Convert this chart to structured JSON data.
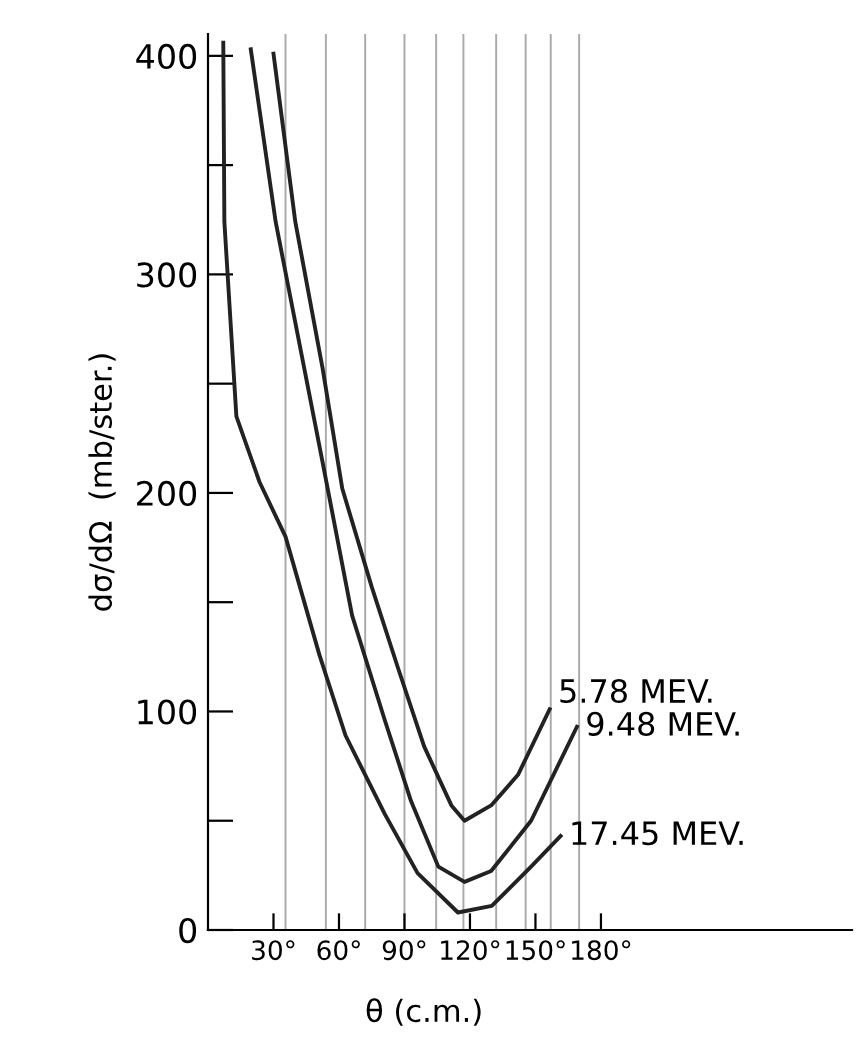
{
  "chart_data": {
    "type": "line",
    "xlabel": "θ (c.m.)",
    "ylabel": "dσ/dΩ  (mb/ster.)",
    "xlim": [
      0,
      295
    ],
    "ylim": [
      0,
      410
    ],
    "xticks": [
      {
        "value": 30,
        "label": "30°"
      },
      {
        "value": 60,
        "label": "60°"
      },
      {
        "value": 90,
        "label": "90°"
      },
      {
        "value": 120,
        "label": "120°"
      },
      {
        "value": 150,
        "label": "150°"
      },
      {
        "value": 180,
        "label": "180°"
      }
    ],
    "yticks": [
      0,
      {
        "value": 50,
        "label": null
      },
      100,
      {
        "value": 150,
        "label": null
      },
      200,
      {
        "value": 250,
        "label": null
      },
      300,
      {
        "value": 350,
        "label": null
      },
      400
    ],
    "grid": false,
    "legend": false,
    "marker": "none",
    "line_style": "solid",
    "series": [
      {
        "name": "5.78 MEV.",
        "color": "#222222",
        "x": [
          30,
          40,
          52.5,
          61.5,
          75,
          87,
          99,
          111.5,
          117.5,
          129.7,
          142,
          156.5
        ],
        "values": [
          401,
          324,
          257,
          202,
          157,
          120,
          84,
          57,
          50,
          57,
          71,
          101
        ]
      },
      {
        "name": "9.48 MEV.",
        "color": "#222222",
        "x": [
          19.6,
          31,
          52.5,
          66,
          81,
          93,
          105.5,
          117.5,
          129.7,
          148,
          169
        ],
        "values": [
          403,
          324,
          214,
          144,
          96,
          59,
          29,
          22,
          27,
          50,
          93
        ]
      },
      {
        "name": "17.45 MEV.",
        "color": "#222222",
        "x": [
          7,
          7.5,
          13,
          23.6,
          35.5,
          51,
          63,
          81,
          96,
          114.5,
          130,
          148,
          161.5
        ],
        "values": [
          406,
          324,
          235,
          205,
          180,
          126,
          89,
          53,
          26,
          8,
          11,
          29,
          43
        ]
      }
    ],
    "ref_lines": [
      {
        "axis": "x",
        "value": 35.5,
        "color": "#aaaaaa"
      },
      {
        "axis": "x",
        "value": 54,
        "color": "#aaaaaa"
      },
      {
        "axis": "x",
        "value": 72,
        "color": "#aaaaaa"
      },
      {
        "axis": "x",
        "value": 90,
        "color": "#aaaaaa"
      },
      {
        "axis": "x",
        "value": 104.5,
        "color": "#aaaaaa"
      },
      {
        "axis": "x",
        "value": 117,
        "color": "#aaaaaa"
      },
      {
        "axis": "x",
        "value": 132,
        "color": "#aaaaaa"
      },
      {
        "axis": "x",
        "value": 145.5,
        "color": "#aaaaaa"
      },
      {
        "axis": "x",
        "value": 157,
        "color": "#aaaaaa"
      },
      {
        "axis": "x",
        "value": 170,
        "color": "#aaaaaa"
      }
    ]
  }
}
